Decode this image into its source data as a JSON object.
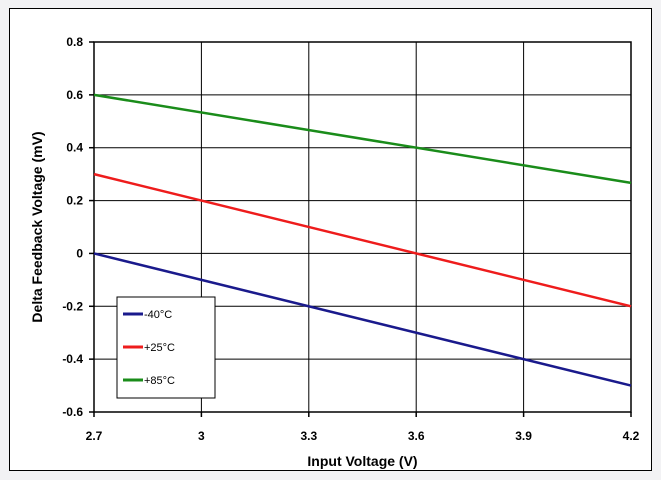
{
  "chart_data": {
    "type": "line",
    "title": "",
    "xlabel": "Input Voltage (V)",
    "ylabel": "Delta Feedback Voltage (mV)",
    "xlim": [
      2.7,
      4.2
    ],
    "ylim": [
      -0.6,
      0.8
    ],
    "x_ticks": [
      2.7,
      3,
      3.3,
      3.6,
      3.9,
      4.2
    ],
    "x_tick_labels": [
      "2.7",
      "3",
      "3.3",
      "3.6",
      "3.9",
      "4.2"
    ],
    "y_ticks": [
      -0.6,
      -0.4,
      -0.2,
      0,
      0.2,
      0.4,
      0.6,
      0.8
    ],
    "y_tick_labels": [
      "-0.6",
      "-0.4",
      "-0.2",
      "0",
      "0.2",
      "0.4",
      "0.6",
      "0.8"
    ],
    "grid": true,
    "legend_position": "lower-left",
    "series": [
      {
        "name": "-40°C",
        "color": "#1a1a8c",
        "x": [
          2.7,
          4.2
        ],
        "y": [
          0.0,
          -0.5
        ]
      },
      {
        "name": "+25°C",
        "color": "#ee1c1c",
        "x": [
          2.7,
          4.2
        ],
        "y": [
          0.3,
          -0.2
        ]
      },
      {
        "name": "+85°C",
        "color": "#1a8c1a",
        "x": [
          2.7,
          4.2
        ],
        "y": [
          0.6,
          0.267
        ]
      }
    ]
  }
}
